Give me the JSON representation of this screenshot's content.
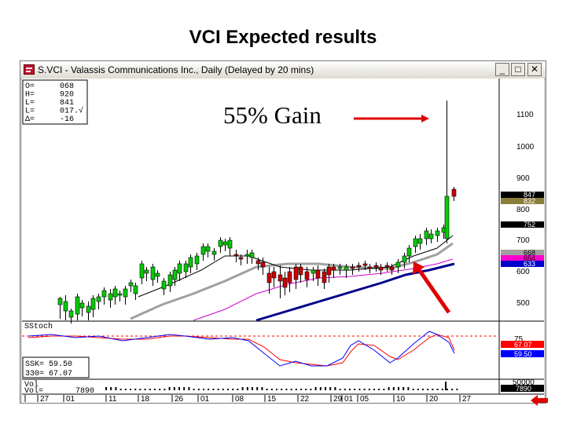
{
  "slide": {
    "title": "VCI Expected results"
  },
  "window": {
    "title": "S.VCI - Valassis Communications Inc., Daily (Delayed by 20 mins)",
    "buttons": {
      "minimize": "_",
      "maximize": "□",
      "close": "✕"
    }
  },
  "ohlc_box": {
    "rows": [
      {
        "key": "O=",
        "value": "068"
      },
      {
        "key": "H=",
        "value": "920"
      },
      {
        "key": "L=",
        "value": "841"
      },
      {
        "key": "L=",
        "value": "017.√"
      },
      {
        "key": "Δ=",
        "value": "-16"
      }
    ]
  },
  "annotation": {
    "text": "55% Gain"
  },
  "price_axis": {
    "ticks": [
      "1100",
      "1000",
      "900",
      "800",
      "700",
      "600",
      "500"
    ],
    "badges": [
      {
        "label": "847",
        "color": "#000000",
        "text_color": "#ffffff"
      },
      {
        "label": "832",
        "color": "#8b7d3a",
        "text_color": "#ffffff"
      },
      {
        "label": "752",
        "color": "#000000",
        "text_color": "#ffffff"
      },
      {
        "label": "668",
        "color": "#a0a0a0",
        "text_color": "#000000"
      },
      {
        "label": "654",
        "color": "#ff00cc",
        "text_color": "#000000"
      },
      {
        "label": "633",
        "color": "#0000cc",
        "text_color": "#ffffff"
      }
    ]
  },
  "stoch_panel": {
    "label": "SStoch",
    "readouts": [
      "SSK= 59.50",
      "330= 67.07"
    ],
    "axis_label": "75",
    "badges": [
      {
        "label": "67.07",
        "color": "#ff0000",
        "text_color": "#ffffff"
      },
      {
        "label": "59.50",
        "color": "#0000ff",
        "text_color": "#ffffff"
      }
    ]
  },
  "volume_panel": {
    "label_top": "Vol",
    "label": "Vol=",
    "value": "7890",
    "axis_label": "50000",
    "badge": {
      "label": "7890",
      "color": "#000000",
      "text_color": "#ffffff"
    }
  },
  "date_axis": [
    "27",
    "01",
    "11",
    "18",
    "26",
    "01",
    "08",
    "15",
    "22",
    "29",
    "01",
    "05",
    "10",
    "20",
    "27"
  ],
  "colors": {
    "bull_candle": "#00cc00",
    "bear_candle": "#cc0000",
    "ma_gray": "#a0a0a0",
    "ma_black": "#000000",
    "ma_magenta": "#cc00cc",
    "ma_blue": "#00008b",
    "arrow_red": "#e00000",
    "stoch_k": "#0000ff",
    "stoch_d": "#ff0000"
  }
}
